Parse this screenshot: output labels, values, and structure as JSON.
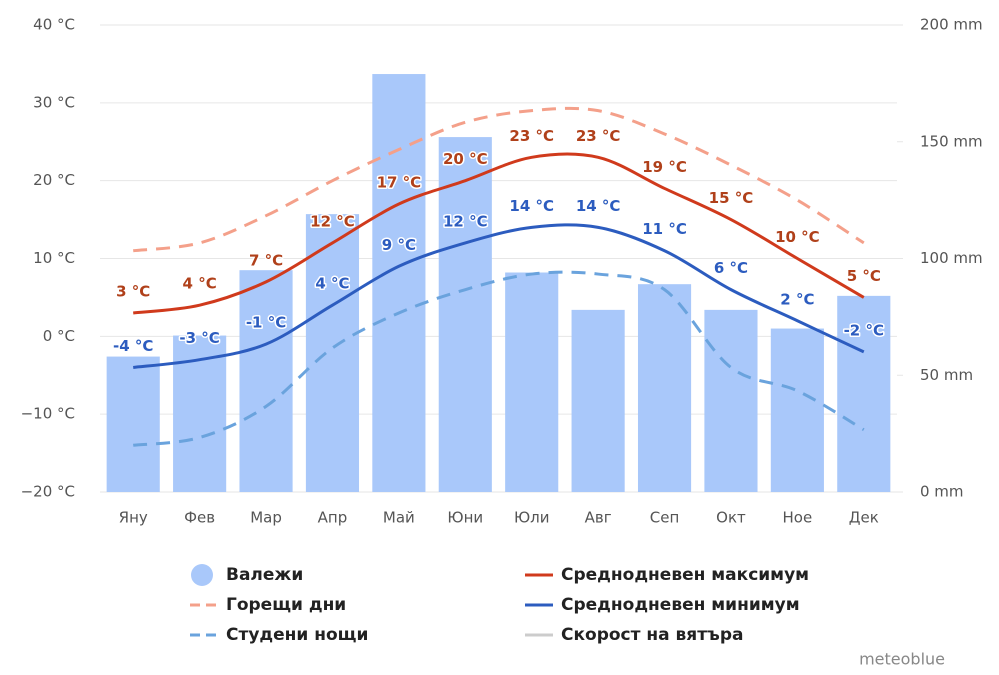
{
  "chart_data": {
    "type": "combo",
    "categories": [
      "Яну",
      "Фев",
      "Мар",
      "Апр",
      "Май",
      "Юни",
      "Юли",
      "Авг",
      "Сеп",
      "Окт",
      "Ное",
      "Дек"
    ],
    "series": [
      {
        "name": "Валежи",
        "type": "bar",
        "axis": "y2",
        "color": "#a9c8fa",
        "values": [
          58,
          67,
          95,
          119,
          179,
          152,
          94,
          78,
          89,
          78,
          70,
          84
        ]
      },
      {
        "name": "Горещи дни",
        "type": "line",
        "dashed": true,
        "color": "#f4a08a",
        "values": [
          11,
          12,
          15.5,
          20,
          24,
          27.5,
          29,
          29,
          26,
          22,
          17.5,
          12
        ]
      },
      {
        "name": "Студени нощи",
        "type": "line",
        "dashed": true,
        "color": "#6aa3dd",
        "values": [
          -14,
          -13,
          -9,
          -1.5,
          3,
          6,
          8,
          8,
          6,
          -4,
          -7,
          -12
        ]
      },
      {
        "name": "Среднодневен максимум",
        "type": "line",
        "color": "#d03a1c",
        "label_color": "#b0401a",
        "values": [
          3,
          4,
          7,
          12,
          17,
          20,
          23,
          23,
          19,
          15,
          10,
          5
        ],
        "value_labels": [
          "3 °C",
          "4 °C",
          "7 °C",
          "12 °C",
          "17 °C",
          "20 °C",
          "23 °C",
          "23 °C",
          "19 °C",
          "15 °C",
          "10 °C",
          "5 °C"
        ]
      },
      {
        "name": "Среднодневен минимум",
        "type": "line",
        "color": "#2c5cbf",
        "label_color": "#2c5cbf",
        "values": [
          -4,
          -3,
          -1,
          4,
          9,
          12,
          14,
          14,
          11,
          6,
          2,
          -2
        ],
        "value_labels": [
          "-4 °C",
          "-3 °C",
          "-1 °C",
          "4 °C",
          "9 °C",
          "12 °C",
          "14 °C",
          "14 °C",
          "11 °C",
          "6 °C",
          "2 °C",
          "-2 °C"
        ]
      },
      {
        "name": "Скорост на вятъра",
        "type": "line",
        "color": "#cccccc",
        "hidden": true
      }
    ],
    "ylim": [
      -20,
      40
    ],
    "yticks": [
      {
        "value": -20,
        "label": "−20 °C"
      },
      {
        "value": -10,
        "label": "−10 °C"
      },
      {
        "value": 0,
        "label": "0 °C"
      },
      {
        "value": 10,
        "label": "10 °C"
      },
      {
        "value": 20,
        "label": "20 °C"
      },
      {
        "value": 30,
        "label": "30 °C"
      },
      {
        "value": 40,
        "label": "40 °C"
      }
    ],
    "y2lim": [
      0,
      200
    ],
    "y2ticks": [
      {
        "value": 0,
        "label": "0 mm"
      },
      {
        "value": 50,
        "label": "50 mm"
      },
      {
        "value": 100,
        "label": "100 mm"
      },
      {
        "value": 150,
        "label": "150 mm"
      },
      {
        "value": 200,
        "label": "200 mm"
      }
    ],
    "grid": true,
    "credit": "meteoblue"
  }
}
